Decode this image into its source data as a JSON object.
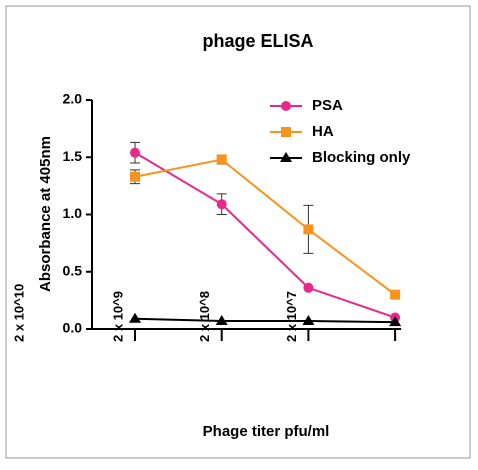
{
  "chart_data": {
    "type": "line",
    "title": "phage ELISA",
    "x_label": "Phage titer pfu/ml",
    "y_label": "Absorbance at 405nm",
    "categories": [
      "2 x 10^9",
      "2 x 10^8",
      "2 x 10^7",
      null
    ],
    "annotations": [
      "2 x 10^10"
    ],
    "series": [
      {
        "name": "PSA",
        "color": "#e8288a",
        "marker": "circle",
        "values": [
          1.54,
          1.09,
          0.36,
          0.1
        ],
        "errors": [
          0.09,
          0.09,
          null,
          null
        ]
      },
      {
        "name": "HA",
        "color": "#f7941d",
        "marker": "square",
        "values": [
          1.33,
          1.48,
          0.87,
          0.3
        ],
        "errors": [
          0.06,
          0.04,
          0.21,
          null
        ]
      },
      {
        "name": "Blocking only",
        "color": "#000000",
        "marker": "triangle",
        "values": [
          0.09,
          0.07,
          0.07,
          0.06
        ],
        "errors": [
          null,
          null,
          null,
          null
        ]
      }
    ],
    "ylim": [
      0,
      2
    ],
    "yticks": [
      {
        "value": 0,
        "label": "0.0"
      },
      0.5,
      {
        "value": 1,
        "label": "1.0"
      },
      1.5,
      {
        "value": 2,
        "label": "2.0"
      }
    ]
  }
}
